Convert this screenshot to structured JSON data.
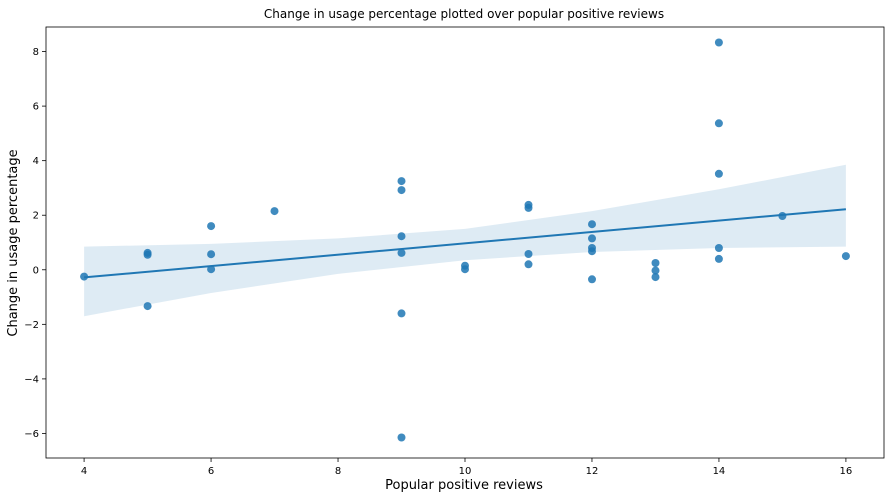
{
  "chart_data": {
    "type": "scatter",
    "title": "Change in usage percentage plotted over popular positive reviews",
    "xlabel": "Popular positive reviews",
    "ylabel": "Change in usage percentage",
    "xlim": [
      3.4,
      16.6
    ],
    "ylim": [
      -6.9,
      8.9
    ],
    "x_ticks": [
      4,
      6,
      8,
      10,
      12,
      14,
      16
    ],
    "y_ticks": [
      -6,
      -4,
      -2,
      0,
      2,
      4,
      6,
      8
    ],
    "grid": false,
    "legend": "none",
    "points": [
      {
        "x": 4,
        "y": -0.25
      },
      {
        "x": 5,
        "y": 0.62
      },
      {
        "x": 5,
        "y": 0.55
      },
      {
        "x": 5,
        "y": -1.33
      },
      {
        "x": 6,
        "y": 1.6
      },
      {
        "x": 6,
        "y": 0.57
      },
      {
        "x": 6,
        "y": 0.02
      },
      {
        "x": 7,
        "y": 2.15
      },
      {
        "x": 9,
        "y": 3.25
      },
      {
        "x": 9,
        "y": 2.92
      },
      {
        "x": 9,
        "y": 1.23
      },
      {
        "x": 9,
        "y": 0.62
      },
      {
        "x": 9,
        "y": -1.6
      },
      {
        "x": 9,
        "y": -6.15
      },
      {
        "x": 10,
        "y": 0.15
      },
      {
        "x": 10,
        "y": 0.02
      },
      {
        "x": 11,
        "y": 2.38
      },
      {
        "x": 11,
        "y": 2.27
      },
      {
        "x": 11,
        "y": 0.58
      },
      {
        "x": 11,
        "y": 0.2
      },
      {
        "x": 12,
        "y": 1.67
      },
      {
        "x": 12,
        "y": 1.15
      },
      {
        "x": 12,
        "y": 0.8
      },
      {
        "x": 12,
        "y": 0.68
      },
      {
        "x": 12,
        "y": -0.35
      },
      {
        "x": 13,
        "y": 0.25
      },
      {
        "x": 13,
        "y": -0.03
      },
      {
        "x": 13,
        "y": -0.27
      },
      {
        "x": 14,
        "y": 8.33
      },
      {
        "x": 14,
        "y": 5.37
      },
      {
        "x": 14,
        "y": 3.52
      },
      {
        "x": 14,
        "y": 0.8
      },
      {
        "x": 14,
        "y": 0.4
      },
      {
        "x": 15,
        "y": 1.97
      },
      {
        "x": 16,
        "y": 0.5
      }
    ],
    "regression_line": {
      "x": [
        4,
        16
      ],
      "y": [
        -0.28,
        2.22
      ]
    },
    "confidence_band": [
      {
        "x": 4,
        "lower": -1.7,
        "upper": 0.85
      },
      {
        "x": 6,
        "lower": -0.85,
        "upper": 0.95
      },
      {
        "x": 8,
        "lower": -0.15,
        "upper": 1.15
      },
      {
        "x": 10,
        "lower": 0.35,
        "upper": 1.5
      },
      {
        "x": 12,
        "lower": 0.65,
        "upper": 2.15
      },
      {
        "x": 14,
        "lower": 0.8,
        "upper": 2.95
      },
      {
        "x": 16,
        "lower": 0.85,
        "upper": 3.85
      }
    ],
    "colors": {
      "points": "#1f77b4",
      "line": "#1f77b4",
      "band": "#1f77b4",
      "axes": "#000000"
    }
  }
}
